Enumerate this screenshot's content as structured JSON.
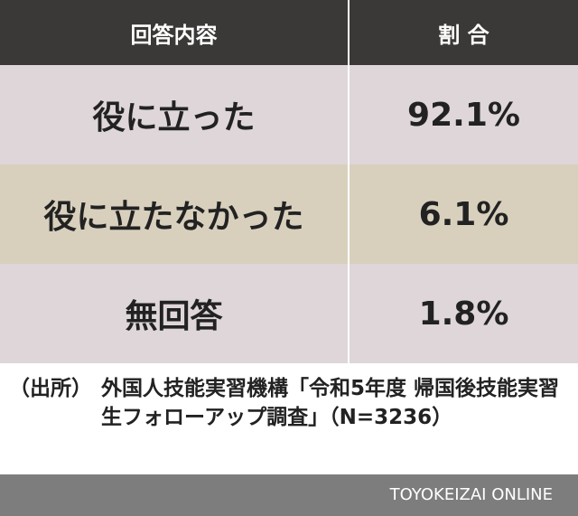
{
  "table": {
    "header": [
      "回答内容",
      "割 合"
    ],
    "rows": [
      [
        "役に立った",
        "92.1%"
      ],
      [
        "役に立たなかった",
        "6.1%"
      ],
      [
        "無回答",
        "1.8%"
      ]
    ]
  },
  "source": {
    "label": "（出所）",
    "text": "外国人技能実習機構「令和5年度 帰国後技能実習生フォローアップ調査」（N=3236）"
  },
  "footer": {
    "brand": "TOYOKEIZAI ONLINE"
  }
}
